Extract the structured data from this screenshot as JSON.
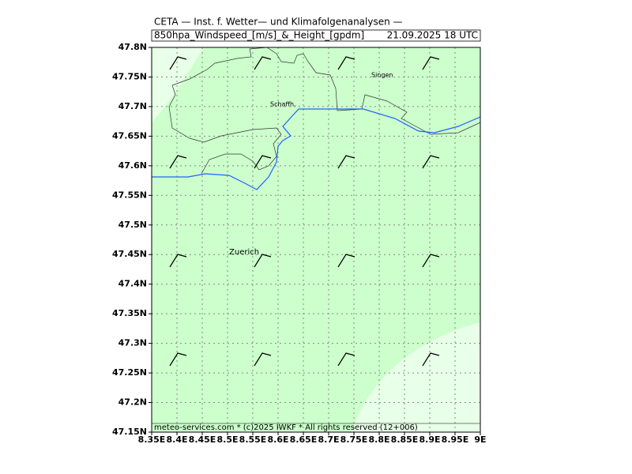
{
  "map": {
    "title": "CETA — Inst. f. Wetter— und Klimafolgenanalysen —",
    "subtitle": "850hpa_Windspeed_[m/s]_&_Height_[gpdm]",
    "valid_time": "21.09.2025 18 UTC",
    "footer": "meteo-services.com * (c)2025 IWKF * All rights reserved (12+006)",
    "xlim": [
      8.35,
      9
    ],
    "ylim": [
      47.15,
      47.8
    ],
    "xticks": [
      {
        "value": 8.35,
        "label": "8.35E"
      },
      {
        "value": 8.4,
        "label": "8.4E"
      },
      {
        "value": 8.45,
        "label": "8.45E"
      },
      {
        "value": 8.5,
        "label": "8.5E"
      },
      {
        "value": 8.55,
        "label": "8.55E"
      },
      {
        "value": 8.6,
        "label": "8.6E"
      },
      {
        "value": 8.65,
        "label": "8.65E"
      },
      {
        "value": 8.7,
        "label": "8.7E"
      },
      {
        "value": 8.75,
        "label": "8.75E"
      },
      {
        "value": 8.8,
        "label": "8.8E"
      },
      {
        "value": 8.85,
        "label": "8.85E"
      },
      {
        "value": 8.9,
        "label": "8.9E"
      },
      {
        "value": 8.95,
        "label": "8.95E"
      },
      {
        "value": 9,
        "label": "9E"
      }
    ],
    "yticks": [
      {
        "value": 47.15,
        "label": "47.15N"
      },
      {
        "value": 47.2,
        "label": "47.2N"
      },
      {
        "value": 47.25,
        "label": "47.25N"
      },
      {
        "value": 47.3,
        "label": "47.3N"
      },
      {
        "value": 47.35,
        "label": "47.35N"
      },
      {
        "value": 47.4,
        "label": "47.4N"
      },
      {
        "value": 47.45,
        "label": "47.45N"
      },
      {
        "value": 47.5,
        "label": "47.5N"
      },
      {
        "value": 47.55,
        "label": "47.55N"
      },
      {
        "value": 47.6,
        "label": "47.6N"
      },
      {
        "value": 47.65,
        "label": "47.65N"
      },
      {
        "value": 47.7,
        "label": "47.7N"
      },
      {
        "value": 47.75,
        "label": "47.75N"
      },
      {
        "value": 47.8,
        "label": "47.8N"
      }
    ],
    "places": [
      "Singen",
      "Schaffh.",
      "Zuerich"
    ]
  }
}
